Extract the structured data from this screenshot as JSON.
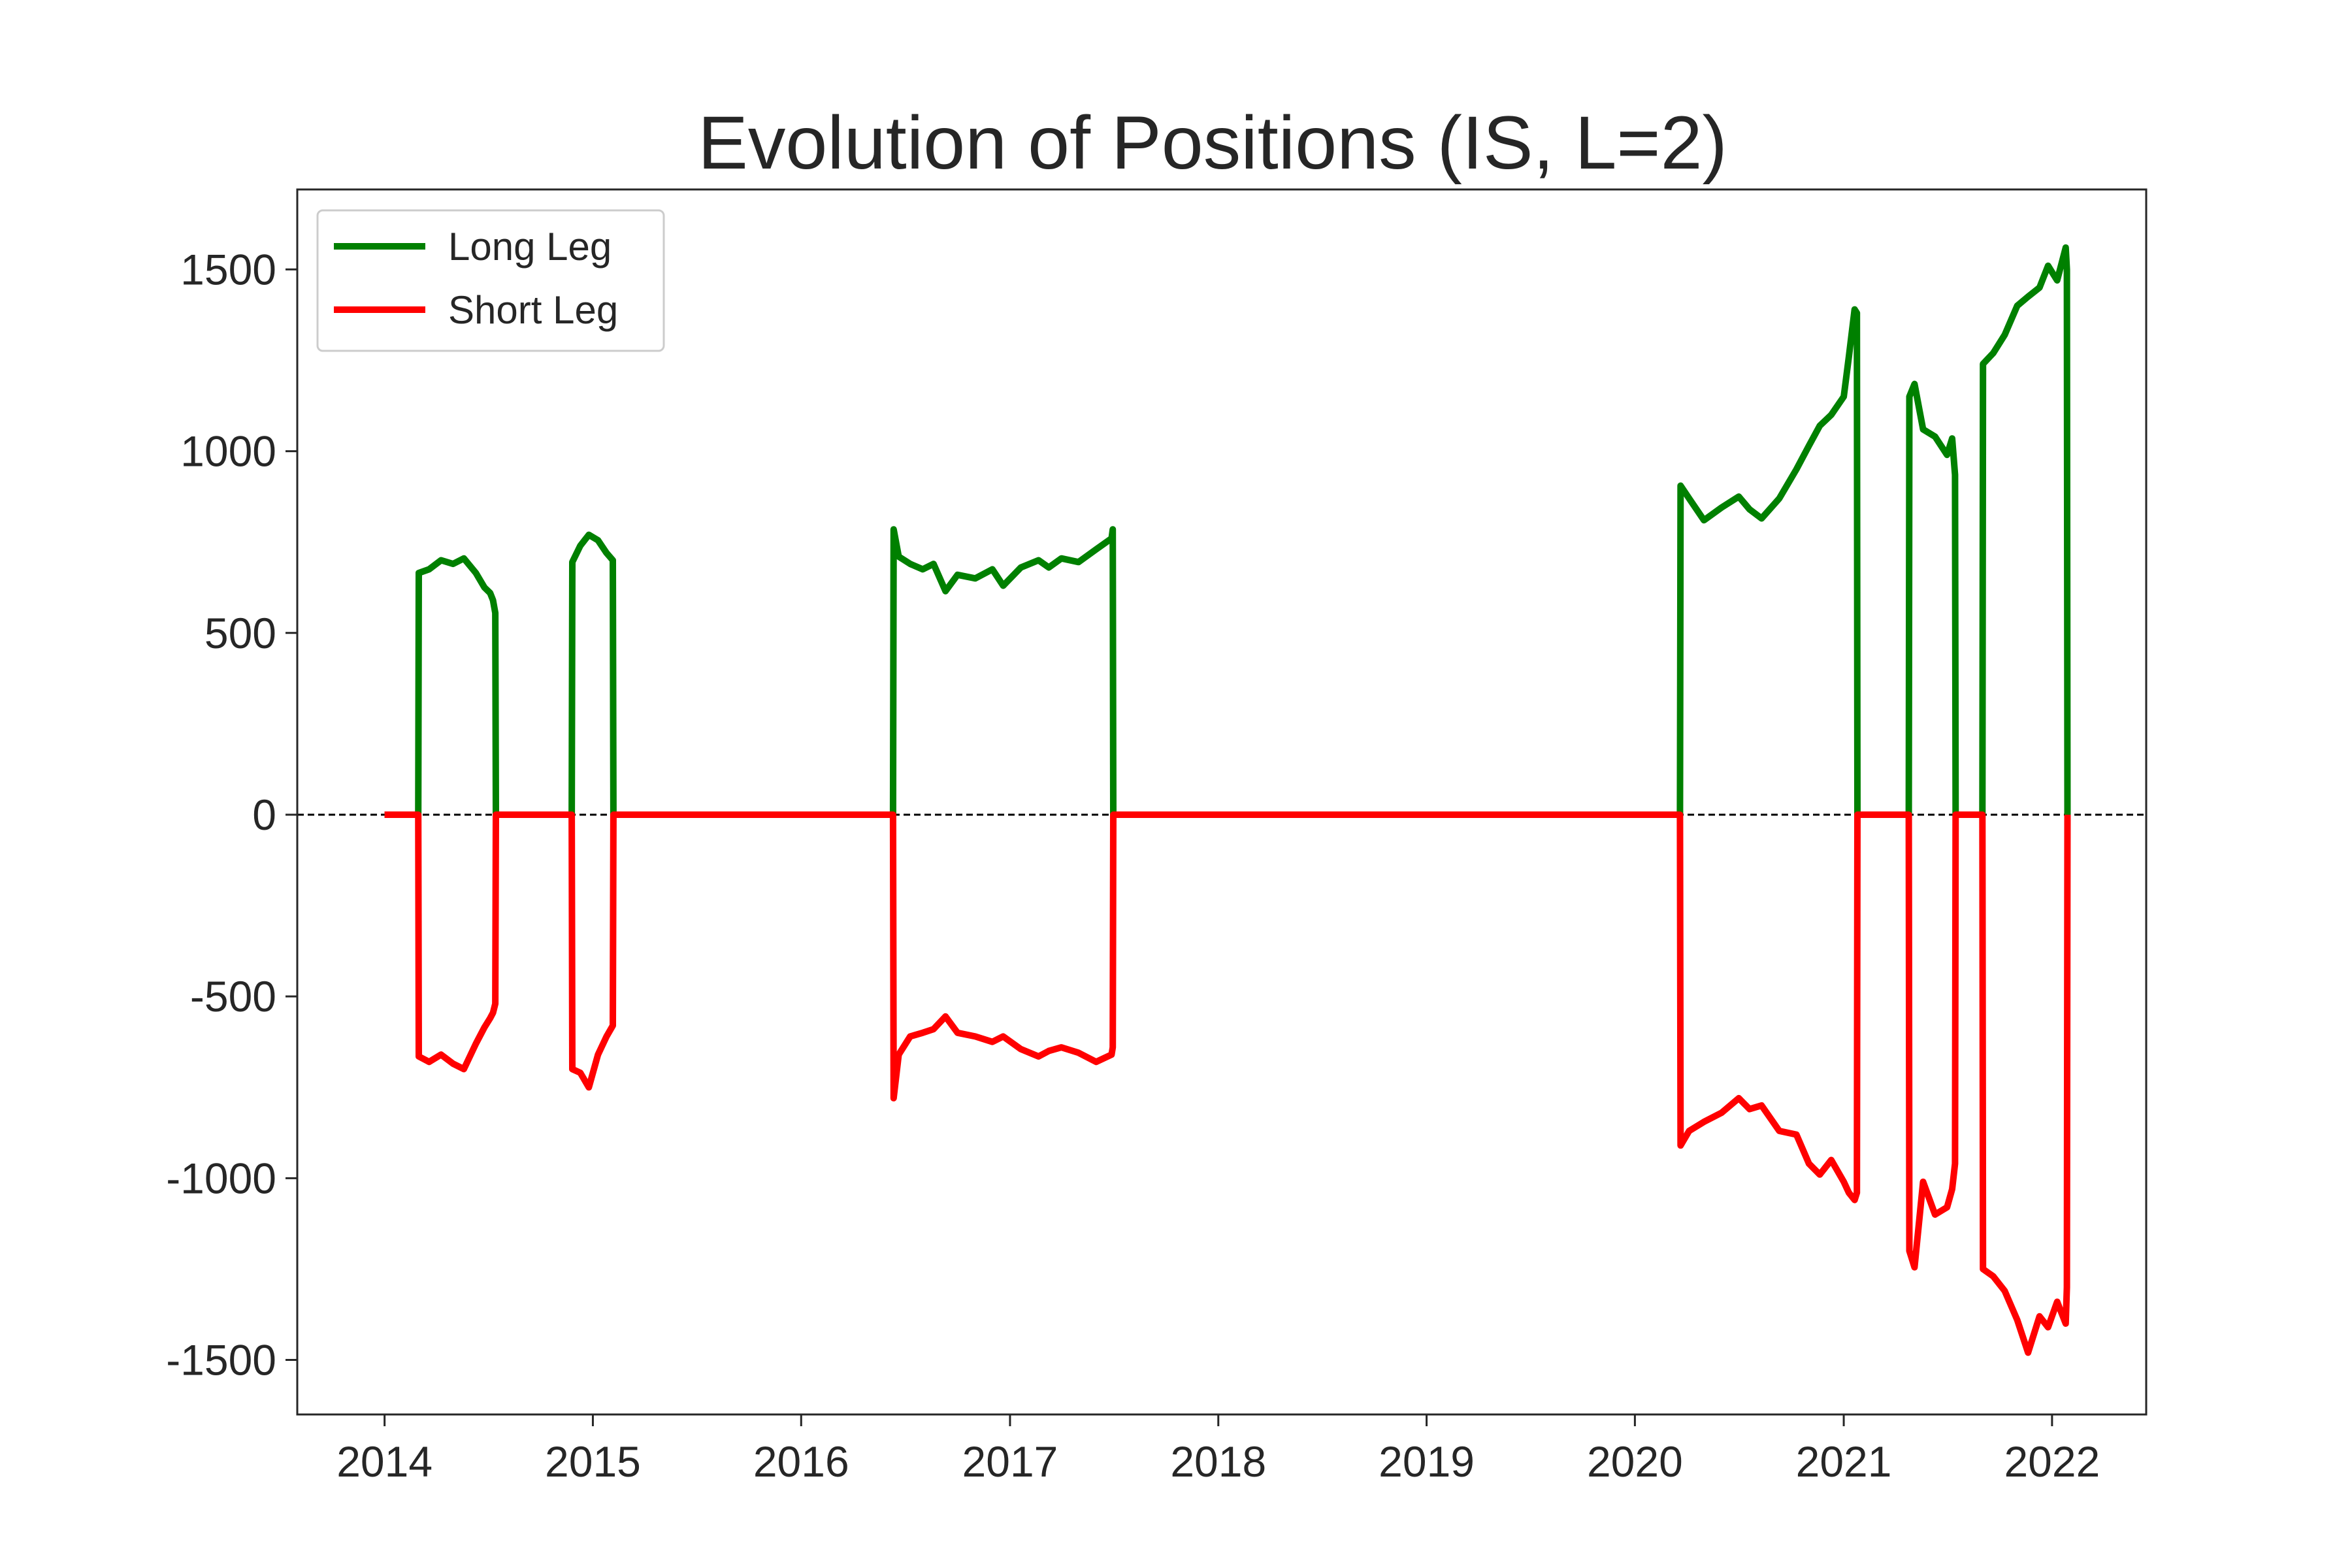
{
  "chart_data": {
    "type": "line",
    "title": "Evolution of Positions (IS, L=2)",
    "xlabel": "",
    "ylabel": "",
    "xlim": [
      "2013-08-01",
      "2022-06-15"
    ],
    "ylim": [
      -1650,
      1720
    ],
    "x_ticks": [
      "2014",
      "2015",
      "2016",
      "2017",
      "2018",
      "2019",
      "2020",
      "2021",
      "2022"
    ],
    "y_ticks": [
      1500,
      1000,
      500,
      0,
      -500,
      -1000,
      -1500
    ],
    "grid": false,
    "legend_position": "top-left",
    "zero_line": {
      "value": 0,
      "style": "dashed",
      "color": "#000000"
    },
    "series": [
      {
        "name": "Long Leg",
        "color": "#008000",
        "points": [
          [
            "2014-01-01",
            0
          ],
          [
            "2014-03-01",
            0
          ],
          [
            "2014-03-02",
            665
          ],
          [
            "2014-03-20",
            675
          ],
          [
            "2014-04-10",
            700
          ],
          [
            "2014-05-01",
            690
          ],
          [
            "2014-05-20",
            705
          ],
          [
            "2014-06-10",
            665
          ],
          [
            "2014-06-25",
            625
          ],
          [
            "2014-07-05",
            610
          ],
          [
            "2014-07-10",
            590
          ],
          [
            "2014-07-14",
            555
          ],
          [
            "2014-07-15",
            0
          ],
          [
            "2014-11-25",
            0
          ],
          [
            "2014-11-26",
            695
          ],
          [
            "2014-12-10",
            740
          ],
          [
            "2014-12-25",
            770
          ],
          [
            "2015-01-10",
            755
          ],
          [
            "2015-01-25",
            720
          ],
          [
            "2015-02-05",
            700
          ],
          [
            "2015-02-06",
            0
          ],
          [
            "2016-06-10",
            0
          ],
          [
            "2016-06-11",
            785
          ],
          [
            "2016-06-20",
            710
          ],
          [
            "2016-07-10",
            690
          ],
          [
            "2016-08-01",
            675
          ],
          [
            "2016-08-20",
            690
          ],
          [
            "2016-09-10",
            615
          ],
          [
            "2016-10-01",
            660
          ],
          [
            "2016-11-01",
            650
          ],
          [
            "2016-12-01",
            675
          ],
          [
            "2016-12-20",
            630
          ],
          [
            "2017-01-20",
            680
          ],
          [
            "2017-02-20",
            700
          ],
          [
            "2017-03-10",
            680
          ],
          [
            "2017-04-01",
            705
          ],
          [
            "2017-05-01",
            695
          ],
          [
            "2017-06-01",
            730
          ],
          [
            "2017-06-28",
            760
          ],
          [
            "2017-06-30",
            785
          ],
          [
            "2017-07-01",
            0
          ],
          [
            "2020-03-20",
            0
          ],
          [
            "2020-03-21",
            905
          ],
          [
            "2020-04-05",
            870
          ],
          [
            "2020-05-01",
            810
          ],
          [
            "2020-06-01",
            845
          ],
          [
            "2020-07-01",
            875
          ],
          [
            "2020-07-20",
            840
          ],
          [
            "2020-08-10",
            815
          ],
          [
            "2020-09-10",
            870
          ],
          [
            "2020-10-10",
            950
          ],
          [
            "2020-11-01",
            1015
          ],
          [
            "2020-11-20",
            1070
          ],
          [
            "2020-12-10",
            1100
          ],
          [
            "2021-01-01",
            1150
          ],
          [
            "2021-01-10",
            1260
          ],
          [
            "2021-01-20",
            1390
          ],
          [
            "2021-01-24",
            1380
          ],
          [
            "2021-01-25",
            0
          ],
          [
            "2021-04-25",
            0
          ],
          [
            "2021-04-26",
            1150
          ],
          [
            "2021-05-05",
            1185
          ],
          [
            "2021-05-20",
            1060
          ],
          [
            "2021-06-10",
            1040
          ],
          [
            "2021-07-01",
            990
          ],
          [
            "2021-07-10",
            1035
          ],
          [
            "2021-07-15",
            935
          ],
          [
            "2021-07-16",
            0
          ],
          [
            "2021-09-01",
            0
          ],
          [
            "2021-09-02",
            1240
          ],
          [
            "2021-09-20",
            1270
          ],
          [
            "2021-10-10",
            1320
          ],
          [
            "2021-11-01",
            1400
          ],
          [
            "2021-11-20",
            1425
          ],
          [
            "2021-12-10",
            1450
          ],
          [
            "2021-12-25",
            1510
          ],
          [
            "2022-01-10",
            1470
          ],
          [
            "2022-01-25",
            1560
          ],
          [
            "2022-01-27",
            1500
          ],
          [
            "2022-01-28",
            0
          ]
        ]
      },
      {
        "name": "Short Leg",
        "color": "#ff0000",
        "points": [
          [
            "2014-01-01",
            0
          ],
          [
            "2014-03-01",
            0
          ],
          [
            "2014-03-02",
            -665
          ],
          [
            "2014-03-20",
            -680
          ],
          [
            "2014-04-10",
            -660
          ],
          [
            "2014-05-01",
            -685
          ],
          [
            "2014-05-20",
            -700
          ],
          [
            "2014-06-10",
            -630
          ],
          [
            "2014-06-25",
            -585
          ],
          [
            "2014-07-05",
            -560
          ],
          [
            "2014-07-10",
            -545
          ],
          [
            "2014-07-14",
            -520
          ],
          [
            "2014-07-15",
            0
          ],
          [
            "2014-11-25",
            0
          ],
          [
            "2014-11-26",
            -700
          ],
          [
            "2014-12-10",
            -710
          ],
          [
            "2014-12-25",
            -750
          ],
          [
            "2015-01-10",
            -660
          ],
          [
            "2015-01-25",
            -610
          ],
          [
            "2015-02-05",
            -580
          ],
          [
            "2015-02-06",
            0
          ],
          [
            "2016-06-10",
            0
          ],
          [
            "2016-06-11",
            -780
          ],
          [
            "2016-06-20",
            -660
          ],
          [
            "2016-07-10",
            -610
          ],
          [
            "2016-08-01",
            -600
          ],
          [
            "2016-08-20",
            -590
          ],
          [
            "2016-09-10",
            -555
          ],
          [
            "2016-10-01",
            -600
          ],
          [
            "2016-11-01",
            -610
          ],
          [
            "2016-12-01",
            -625
          ],
          [
            "2016-12-20",
            -610
          ],
          [
            "2017-01-20",
            -645
          ],
          [
            "2017-02-20",
            -665
          ],
          [
            "2017-03-10",
            -650
          ],
          [
            "2017-04-01",
            -640
          ],
          [
            "2017-05-01",
            -655
          ],
          [
            "2017-06-01",
            -680
          ],
          [
            "2017-06-28",
            -660
          ],
          [
            "2017-06-30",
            -640
          ],
          [
            "2017-07-01",
            0
          ],
          [
            "2020-03-20",
            0
          ],
          [
            "2020-03-21",
            -910
          ],
          [
            "2020-04-05",
            -870
          ],
          [
            "2020-05-01",
            -845
          ],
          [
            "2020-06-01",
            -820
          ],
          [
            "2020-07-01",
            -780
          ],
          [
            "2020-07-20",
            -810
          ],
          [
            "2020-08-10",
            -800
          ],
          [
            "2020-09-10",
            -870
          ],
          [
            "2020-10-10",
            -880
          ],
          [
            "2020-11-01",
            -960
          ],
          [
            "2020-11-20",
            -990
          ],
          [
            "2020-12-10",
            -950
          ],
          [
            "2021-01-01",
            -1010
          ],
          [
            "2021-01-10",
            -1040
          ],
          [
            "2021-01-20",
            -1060
          ],
          [
            "2021-01-24",
            -1040
          ],
          [
            "2021-01-25",
            0
          ],
          [
            "2021-04-25",
            0
          ],
          [
            "2021-04-26",
            -1200
          ],
          [
            "2021-05-05",
            -1245
          ],
          [
            "2021-05-20",
            -1010
          ],
          [
            "2021-06-10",
            -1100
          ],
          [
            "2021-07-01",
            -1080
          ],
          [
            "2021-07-10",
            -1030
          ],
          [
            "2021-07-15",
            -960
          ],
          [
            "2021-07-16",
            0
          ],
          [
            "2021-09-01",
            0
          ],
          [
            "2021-09-02",
            -1250
          ],
          [
            "2021-09-20",
            -1270
          ],
          [
            "2021-10-10",
            -1310
          ],
          [
            "2021-11-01",
            -1390
          ],
          [
            "2021-11-20",
            -1480
          ],
          [
            "2021-12-10",
            -1380
          ],
          [
            "2021-12-25",
            -1410
          ],
          [
            "2022-01-10",
            -1340
          ],
          [
            "2022-01-25",
            -1400
          ],
          [
            "2022-01-27",
            -1300
          ],
          [
            "2022-01-28",
            0
          ]
        ]
      }
    ]
  }
}
